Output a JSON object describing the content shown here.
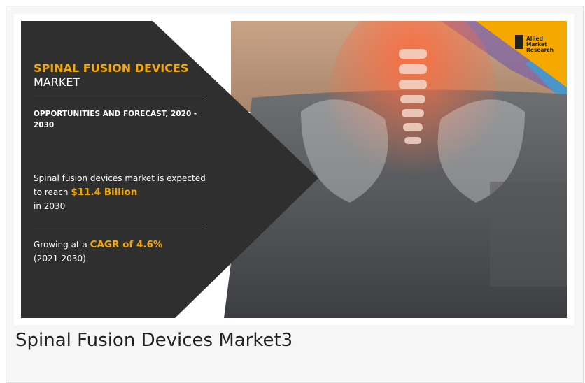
{
  "infographic": {
    "title_highlight": "SPINAL FUSION DEVICES",
    "title_rest": "MARKET",
    "subtitle": "OPPORTUNITIES AND FORECAST, 2020 - 2030",
    "reach_text": "Spinal fusion devices market is expected to reach",
    "reach_value": "$11.4 Billion",
    "reach_year": "in 2030",
    "growth_text": "Growing at a",
    "growth_value": "CAGR of 4.6%",
    "growth_period": "(2021-2030)",
    "logo": [
      "Allied",
      "Market",
      "Research"
    ]
  },
  "caption": "Spinal Fusion Devices Market3"
}
